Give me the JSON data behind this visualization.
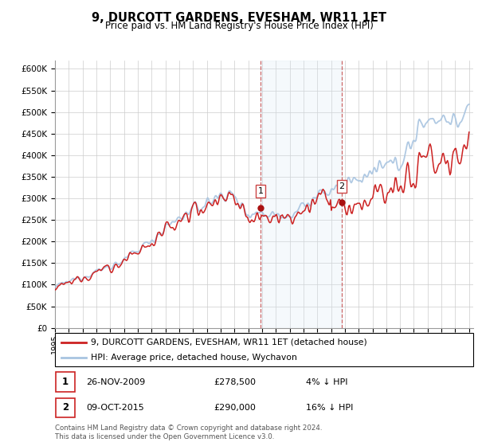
{
  "title": "9, DURCOTT GARDENS, EVESHAM, WR11 1ET",
  "subtitle": "Price paid vs. HM Land Registry's House Price Index (HPI)",
  "legend_line1": "9, DURCOTT GARDENS, EVESHAM, WR11 1ET (detached house)",
  "legend_line2": "HPI: Average price, detached house, Wychavon",
  "transaction1_date": "26-NOV-2009",
  "transaction1_price": "£278,500",
  "transaction1_hpi": "4% ↓ HPI",
  "transaction2_date": "09-OCT-2015",
  "transaction2_price": "£290,000",
  "transaction2_hpi": "16% ↓ HPI",
  "footer": "Contains HM Land Registry data © Crown copyright and database right 2024.\nThis data is licensed under the Open Government Licence v3.0.",
  "hpi_color": "#a8c4e0",
  "price_color": "#cc2222",
  "marker_color": "#aa1111",
  "shaded_region_color": "#d8e8f5",
  "dashed_line_color": "#cc6666",
  "ylim_min": 0,
  "ylim_max": 620000,
  "yticks": [
    0,
    50000,
    100000,
    150000,
    200000,
    250000,
    300000,
    350000,
    400000,
    450000,
    500000,
    550000,
    600000
  ],
  "start_year": 1995,
  "end_year": 2025,
  "transaction1_year": 2009.9,
  "transaction2_year": 2015.77,
  "transaction1_value": 278500,
  "transaction2_value": 290000
}
